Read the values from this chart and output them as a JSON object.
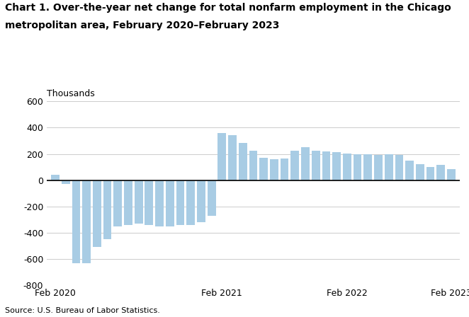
{
  "title_line1": "Chart 1. Over-the-year net change for total nonfarm employment in the Chicago",
  "title_line2": "metropolitan area, February 2020–February 2023",
  "ylabel": "Thousands",
  "source": "Source: U.S. Bureau of Labor Statistics.",
  "bar_color": "#a8cce4",
  "zero_line_color": "#000000",
  "ylim": [
    -800,
    600
  ],
  "yticks": [
    -800,
    -600,
    -400,
    -200,
    0,
    200,
    400,
    600
  ],
  "xtick_labels": [
    "Feb 2020",
    "Feb 2021",
    "Feb 2022",
    "Feb 2023"
  ],
  "xtick_positions": [
    0,
    16,
    28,
    38
  ],
  "values": [
    40,
    -30,
    -630,
    -630,
    -510,
    -450,
    -350,
    -340,
    -330,
    -340,
    -350,
    -350,
    -340,
    -340,
    -320,
    -270,
    360,
    345,
    285,
    225,
    170,
    160,
    165,
    225,
    250,
    225,
    220,
    215,
    205,
    200,
    200,
    190,
    200,
    195,
    150,
    125,
    100,
    115,
    85
  ],
  "background_color": "#ffffff",
  "grid_color": "#cccccc",
  "title_fontsize": 10,
  "tick_fontsize": 9,
  "source_fontsize": 8
}
